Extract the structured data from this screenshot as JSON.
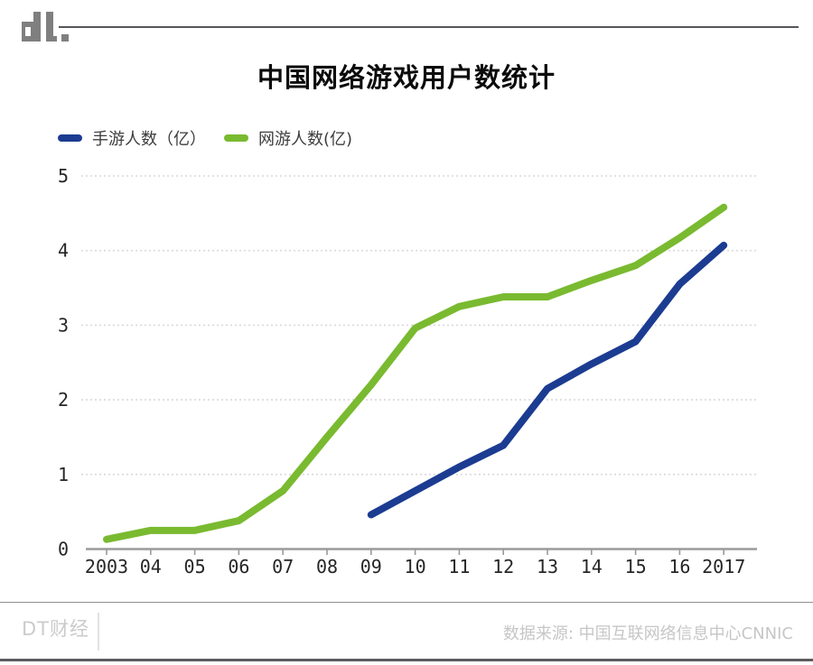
{
  "logo": {
    "text": "dt."
  },
  "header": {
    "title": "中国网络游戏用户数统计"
  },
  "legend": {
    "items": [
      {
        "label": "手游人数（亿）",
        "color": "#1b3c91"
      },
      {
        "label": "网游人数(亿)",
        "color": "#79ba30"
      }
    ]
  },
  "chart_data": {
    "type": "line",
    "title": "中国网络游戏用户数统计",
    "xlabel": "",
    "ylabel": "",
    "categories": [
      "2003",
      "04",
      "05",
      "06",
      "07",
      "08",
      "09",
      "10",
      "11",
      "12",
      "13",
      "14",
      "15",
      "16",
      "2017"
    ],
    "series": [
      {
        "name": "手游人数（亿）",
        "color": "#1b3c91",
        "values": [
          null,
          null,
          null,
          null,
          null,
          null,
          0.46,
          0.78,
          1.1,
          1.39,
          2.15,
          2.48,
          2.78,
          3.55,
          4.07
        ]
      },
      {
        "name": "网游人数(亿)",
        "color": "#79ba30",
        "values": [
          0.13,
          0.25,
          0.25,
          0.38,
          0.78,
          1.5,
          2.2,
          2.96,
          3.25,
          3.38,
          3.38,
          3.6,
          3.8,
          4.17,
          4.58
        ]
      }
    ],
    "ylim": [
      0,
      5
    ],
    "yticks": [
      0,
      1,
      2,
      3,
      4,
      5
    ],
    "grid": "horizontal dotted, integers 1-5 only",
    "legend_position": "top-left",
    "axis_color": "#9a9a9a",
    "grid_color": "#d9d9d9",
    "tick_label_color": "#262626",
    "line_width": 8
  },
  "footer": {
    "brand": "DT财经",
    "source": "数据来源: 中国互联网络信息中心CNNIC"
  }
}
